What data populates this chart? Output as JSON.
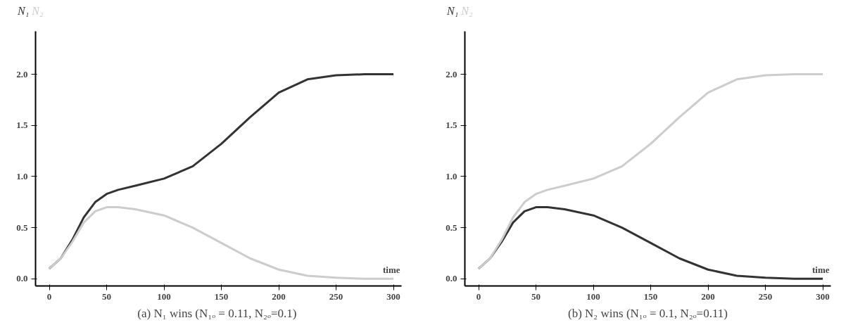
{
  "chart_data": [
    {
      "type": "line",
      "xlabel": "time",
      "line_style": "solid",
      "marker": "none",
      "grid": false,
      "xlim": [
        -12,
        307
      ],
      "ylim": [
        -0.07,
        2.42
      ],
      "xticks": [
        0,
        50,
        100,
        150,
        200,
        250,
        300
      ],
      "yticks": [
        {
          "value": 0,
          "label": "0.0"
        },
        {
          "value": 0.5,
          "label": "0.5"
        },
        {
          "value": 1,
          "label": "1.0"
        },
        {
          "value": 1.5,
          "label": "1.5"
        },
        {
          "value": 2,
          "label": "2.0"
        }
      ],
      "x": [
        0,
        10,
        20,
        30,
        40,
        50,
        60,
        75,
        100,
        125,
        150,
        175,
        200,
        225,
        250,
        275,
        300
      ],
      "annotations": [
        "(a)  N₁ wins (N₁ₒ = 0.11, N₂ₒ=0.1)"
      ],
      "series": [
        {
          "name": "N₁",
          "color": "#333333",
          "values": [
            0.1,
            0.2,
            0.38,
            0.6,
            0.75,
            0.83,
            0.87,
            0.91,
            0.98,
            1.1,
            1.32,
            1.58,
            1.82,
            1.95,
            1.99,
            2.0,
            2.0
          ]
        },
        {
          "name": "N₂",
          "color": "#cccccc",
          "values": [
            0.1,
            0.2,
            0.36,
            0.55,
            0.66,
            0.7,
            0.7,
            0.68,
            0.62,
            0.5,
            0.35,
            0.2,
            0.09,
            0.03,
            0.01,
            0.0,
            0.0
          ]
        }
      ]
    },
    {
      "type": "line",
      "xlabel": "time",
      "line_style": "solid",
      "marker": "none",
      "grid": false,
      "xlim": [
        -12,
        307
      ],
      "ylim": [
        -0.07,
        2.42
      ],
      "xticks": [
        0,
        50,
        100,
        150,
        200,
        250,
        300
      ],
      "yticks": [
        {
          "value": 0,
          "label": "0.0"
        },
        {
          "value": 0.5,
          "label": "0.5"
        },
        {
          "value": 1,
          "label": "1.0"
        },
        {
          "value": 1.5,
          "label": "1.5"
        },
        {
          "value": 2,
          "label": "2.0"
        }
      ],
      "x": [
        0,
        10,
        20,
        30,
        40,
        50,
        60,
        75,
        100,
        125,
        150,
        175,
        200,
        225,
        250,
        275,
        300
      ],
      "annotations": [
        "(b) N₂ wins (N₁ₒ = 0.1, N₂ₒ=0.11)"
      ],
      "series": [
        {
          "name": "N₁",
          "color": "#333333",
          "values": [
            0.1,
            0.2,
            0.36,
            0.55,
            0.66,
            0.7,
            0.7,
            0.68,
            0.62,
            0.5,
            0.35,
            0.2,
            0.09,
            0.03,
            0.01,
            0.0,
            0.0
          ]
        },
        {
          "name": "N₂",
          "color": "#cccccc",
          "values": [
            0.1,
            0.2,
            0.38,
            0.6,
            0.75,
            0.83,
            0.87,
            0.91,
            0.98,
            1.1,
            1.32,
            1.58,
            1.82,
            1.95,
            1.99,
            2.0,
            2.0
          ]
        }
      ]
    }
  ]
}
